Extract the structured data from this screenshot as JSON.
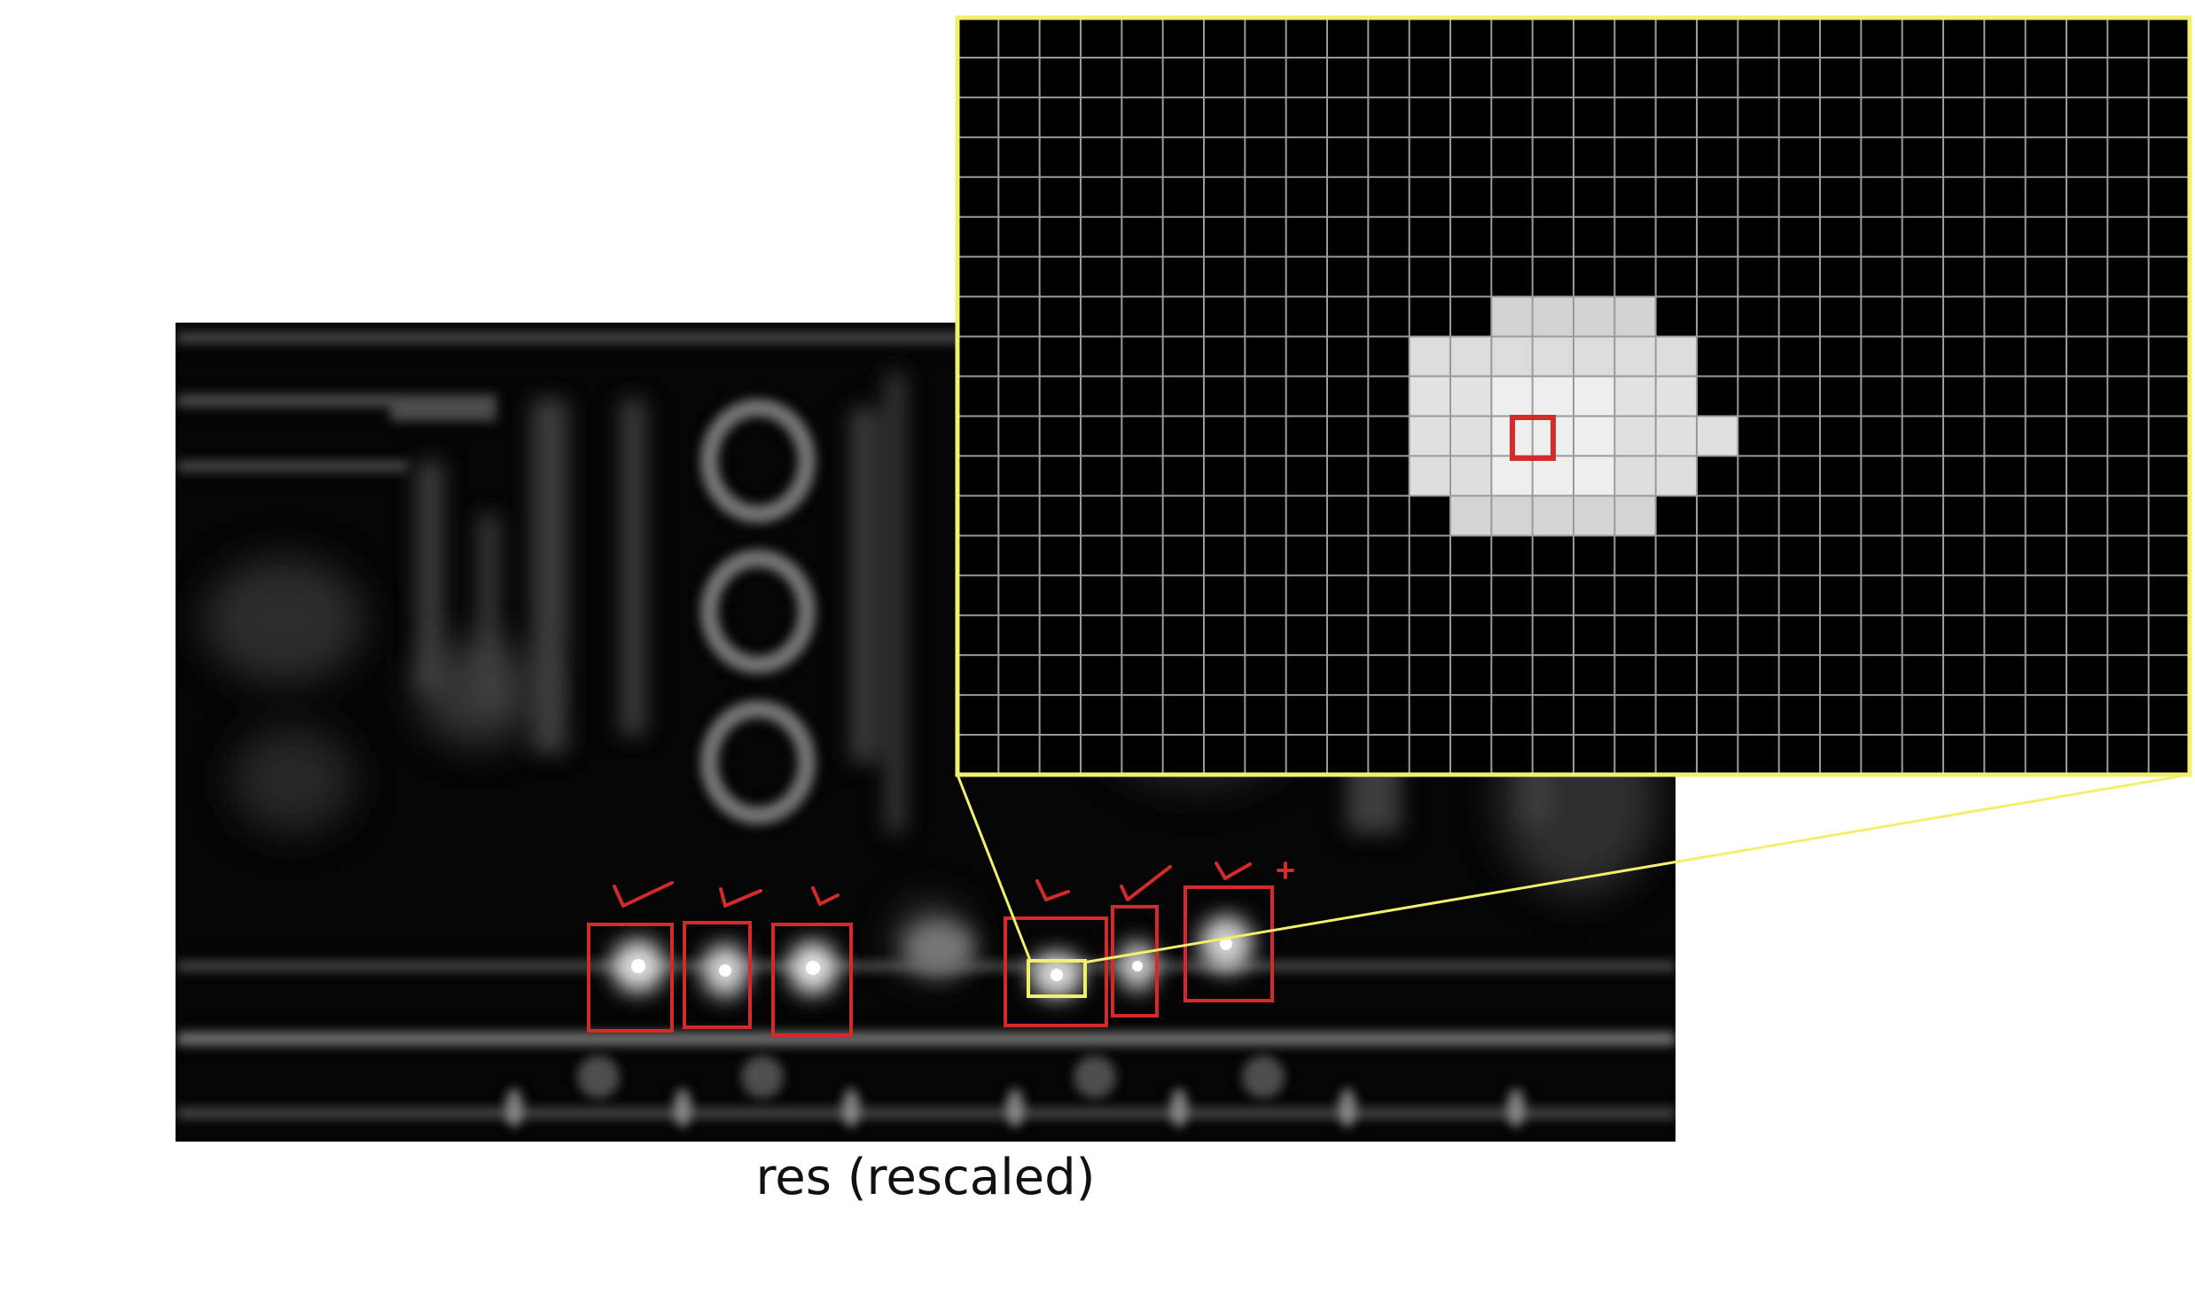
{
  "caption": "res (rescaled)",
  "colors": {
    "annotation": "#d42a2a",
    "highlight": "#f1ef6b",
    "zoom_grid": "#9a9a9a",
    "background": "#000000"
  },
  "icons": {
    "checkmark": "check-mark-icon",
    "plus": "plus-icon"
  }
}
